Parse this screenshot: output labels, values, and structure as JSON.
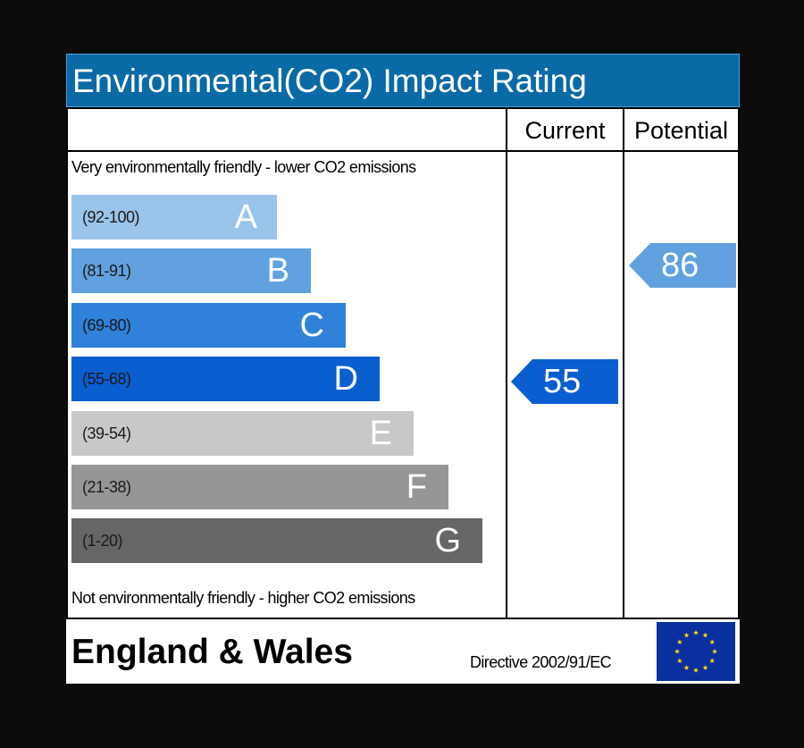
{
  "title": "Environmental(CO2) Impact Rating",
  "columns": {
    "current": "Current",
    "potential": "Potential"
  },
  "captions": {
    "top": "Very environmentally friendly - lower CO2 emissions",
    "bottom": "Not environmentally friendly - higher CO2 emissions"
  },
  "footer": {
    "region": "England & Wales",
    "directive": "Directive 2002/91/EC",
    "flag_icon": "eu-flag-icon"
  },
  "chart_data": {
    "type": "bar",
    "categories": [
      "A",
      "B",
      "C",
      "D",
      "E",
      "F",
      "G"
    ],
    "bands": [
      {
        "letter": "A",
        "range": "(92-100)",
        "color": "#9bc4ea"
      },
      {
        "letter": "B",
        "range": "(81-91)",
        "color": "#62a1e0"
      },
      {
        "letter": "C",
        "range": "(69-80)",
        "color": "#2f81d9"
      },
      {
        "letter": "D",
        "range": "(55-68)",
        "color": "#0a5ecf"
      },
      {
        "letter": "E",
        "range": "(39-54)",
        "color": "#c8c8c8"
      },
      {
        "letter": "F",
        "range": "(21-38)",
        "color": "#969696"
      },
      {
        "letter": "G",
        "range": "(1-20)",
        "color": "#666666"
      }
    ],
    "ratings": {
      "current": {
        "value": 55,
        "label": "55",
        "band": "D",
        "color": "#0a5ecf"
      },
      "potential": {
        "value": 86,
        "label": "86",
        "band": "B",
        "color": "#62a1e0"
      }
    }
  }
}
